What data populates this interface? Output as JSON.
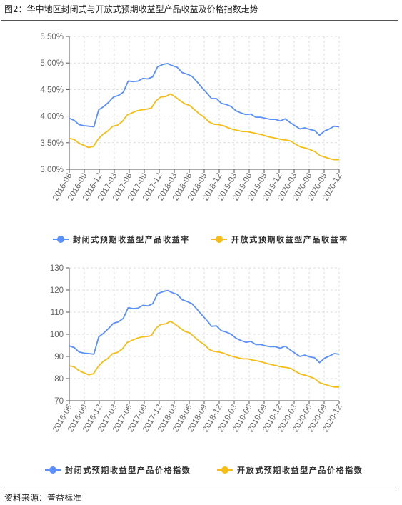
{
  "figure": {
    "title": "图2：华中地区封闭式与开放式预期收益型产品收益及价格指数走势",
    "source": "资料来源：普益标准",
    "colors": {
      "blue": "#5b8ff9",
      "orange": "#f6bd16",
      "grid": "#dcdcdc",
      "axis": "#555555"
    }
  },
  "chart_data": [
    {
      "type": "line",
      "title": "",
      "xlabel": "",
      "ylabel": "",
      "x_tick_labels": [
        "2016-06",
        "2016-09",
        "2016-12",
        "2017-03",
        "2017-06",
        "2017-09",
        "2017-12",
        "2018-03",
        "2018-06",
        "2018-09",
        "2018-12",
        "2019-03",
        "2019-06",
        "2019-09",
        "2019-12",
        "2020-03",
        "2020-06",
        "2020-09",
        "2020-12"
      ],
      "y_tick_labels": [
        "3.00%",
        "3.50%",
        "4.00%",
        "4.50%",
        "5.00%",
        "5.50%"
      ],
      "ylim": [
        3.0,
        5.5
      ],
      "grid": true,
      "legend_position": "bottom",
      "series": [
        {
          "name": "封闭式预期收益型产品收益率",
          "color": "#5b8ff9",
          "values": [
            3.96,
            3.92,
            3.84,
            3.82,
            3.81,
            3.8,
            4.12,
            4.18,
            4.26,
            4.36,
            4.39,
            4.45,
            4.66,
            4.65,
            4.66,
            4.71,
            4.7,
            4.74,
            4.93,
            4.97,
            4.99,
            4.95,
            4.92,
            4.82,
            4.79,
            4.75,
            4.65,
            4.54,
            4.44,
            4.33,
            4.33,
            4.24,
            4.22,
            4.18,
            4.1,
            4.06,
            4.03,
            4.04,
            3.98,
            3.98,
            3.96,
            3.94,
            3.94,
            3.91,
            3.95,
            3.88,
            3.82,
            3.76,
            3.78,
            3.75,
            3.73,
            3.64,
            3.72,
            3.76,
            3.81,
            3.8
          ]
        },
        {
          "name": "开放式预期收益型产品收益率",
          "color": "#f6bd16",
          "values": [
            3.58,
            3.56,
            3.49,
            3.45,
            3.41,
            3.43,
            3.57,
            3.66,
            3.72,
            3.81,
            3.83,
            3.9,
            4.02,
            4.06,
            4.1,
            4.12,
            4.13,
            4.15,
            4.29,
            4.36,
            4.37,
            4.42,
            4.36,
            4.29,
            4.23,
            4.2,
            4.12,
            4.04,
            3.98,
            3.89,
            3.85,
            3.84,
            3.82,
            3.78,
            3.75,
            3.73,
            3.71,
            3.71,
            3.69,
            3.67,
            3.65,
            3.62,
            3.6,
            3.58,
            3.56,
            3.55,
            3.53,
            3.47,
            3.42,
            3.4,
            3.37,
            3.33,
            3.26,
            3.23,
            3.2,
            3.18,
            3.18
          ]
        }
      ]
    },
    {
      "type": "line",
      "title": "",
      "xlabel": "",
      "ylabel": "",
      "x_tick_labels": [
        "2016-06",
        "2016-09",
        "2016-12",
        "2017-03",
        "2017-06",
        "2017-09",
        "2017-12",
        "2018-03",
        "2018-06",
        "2018-09",
        "2018-12",
        "2019-03",
        "2019-06",
        "2019-09",
        "2019-12",
        "2020-03",
        "2020-06",
        "2020-09",
        "2020-12"
      ],
      "y_tick_labels": [
        "70",
        "80",
        "90",
        "100",
        "110",
        "120",
        "130"
      ],
      "ylim": [
        70,
        130
      ],
      "grid": true,
      "legend_position": "bottom",
      "series": [
        {
          "name": "封闭式预期收益型产品价格指数",
          "color": "#5b8ff9",
          "values": [
            94.8,
            94.0,
            92.0,
            91.5,
            91.3,
            91.0,
            98.8,
            100.5,
            102.6,
            105.0,
            105.6,
            107.2,
            112.0,
            111.6,
            111.8,
            113.1,
            112.8,
            113.8,
            118.4,
            119.2,
            119.8,
            118.8,
            118.0,
            115.6,
            114.8,
            113.8,
            111.4,
            108.8,
            106.4,
            103.6,
            103.8,
            101.6,
            101.0,
            100.0,
            98.2,
            97.2,
            96.4,
            96.8,
            95.4,
            95.4,
            94.8,
            94.4,
            94.4,
            93.7,
            94.6,
            93.0,
            91.5,
            90.0,
            90.6,
            89.8,
            89.4,
            87.2,
            89.2,
            90.2,
            91.3,
            91.0
          ]
        },
        {
          "name": "开放式预期收益型产品价格指数",
          "color": "#f6bd16",
          "values": [
            85.8,
            85.3,
            83.6,
            82.6,
            81.7,
            82.2,
            85.5,
            87.7,
            89.1,
            91.3,
            91.8,
            93.4,
            96.3,
            97.3,
            98.2,
            98.8,
            99.0,
            99.4,
            102.8,
            104.5,
            104.7,
            105.9,
            104.5,
            102.8,
            101.3,
            100.6,
            98.7,
            96.8,
            95.4,
            93.2,
            92.3,
            92.0,
            91.5,
            90.6,
            89.9,
            89.4,
            88.9,
            88.9,
            88.4,
            88.0,
            87.5,
            86.8,
            86.3,
            85.8,
            85.3,
            85.0,
            84.6,
            83.2,
            82.0,
            81.5,
            80.8,
            79.8,
            78.1,
            77.4,
            76.7,
            76.2,
            76.2
          ]
        }
      ]
    }
  ]
}
